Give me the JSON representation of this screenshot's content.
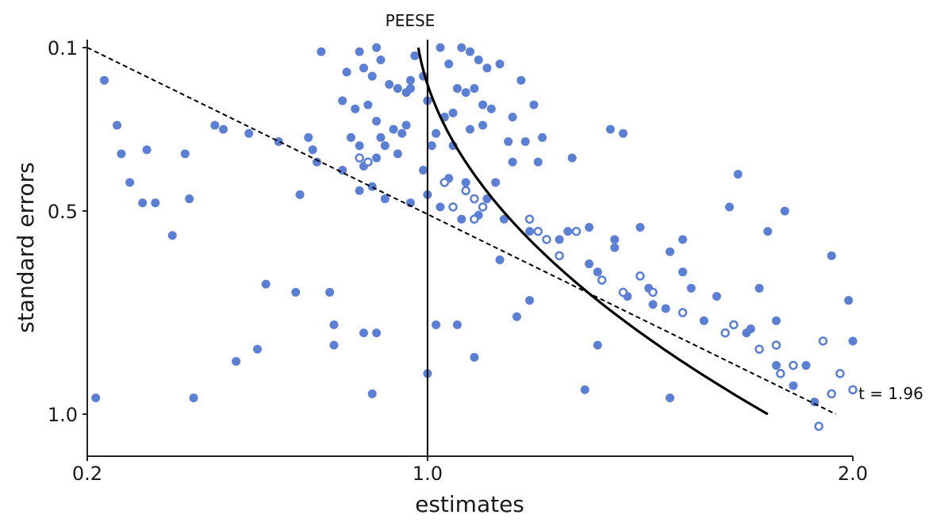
{
  "chart_data": {
    "type": "scatter",
    "title": "",
    "xlabel": "estimates",
    "ylabel": "standard errors",
    "xlim": [
      0.2,
      2.0
    ],
    "ylim": [
      0.0,
      1.1
    ],
    "y_inverted": true,
    "x_ticks": [
      {
        "value": 0.2,
        "label": "0.2"
      },
      {
        "value": 1.0,
        "label": "1.0"
      },
      {
        "value": 2.0,
        "label": "2.0"
      }
    ],
    "y_ticks": [
      {
        "value": 0.1,
        "label": "0.1"
      },
      {
        "value": 0.5,
        "label": "0.5"
      },
      {
        "value": 1.0,
        "label": "1.0"
      }
    ],
    "grid": false,
    "colors": {
      "points": "#5b7fd4",
      "lines": "#000000"
    },
    "annotations": {
      "peese_label": "PEESE",
      "t_label": "t = 1.96"
    },
    "reference_line": {
      "x": 1.0
    },
    "peese_curve": {
      "intercept": 0.97,
      "coef": 0.83,
      "se_from": 0.1,
      "se_to": 1.0
    },
    "threshold_line": {
      "x1": 0.2,
      "y1": 0.1,
      "x2": 1.96,
      "y2": 1.0
    },
    "series": [
      {
        "marker": "filled",
        "points": [
          [
            0.75,
            0.11
          ],
          [
            0.84,
            0.11
          ],
          [
            0.88,
            0.1
          ],
          [
            0.97,
            0.12
          ],
          [
            1.03,
            0.1
          ],
          [
            1.08,
            0.1
          ],
          [
            1.1,
            0.11
          ],
          [
            1.12,
            0.13
          ],
          [
            0.81,
            0.16
          ],
          [
            0.85,
            0.15
          ],
          [
            0.87,
            0.17
          ],
          [
            0.89,
            0.13
          ],
          [
            0.91,
            0.19
          ],
          [
            0.93,
            0.2
          ],
          [
            0.96,
            0.18
          ],
          [
            0.99,
            0.17
          ],
          [
            1.05,
            0.14
          ],
          [
            1.07,
            0.2
          ],
          [
            1.09,
            0.21
          ],
          [
            1.11,
            0.2
          ],
          [
            1.14,
            0.15
          ],
          [
            1.17,
            0.14
          ],
          [
            1.22,
            0.18
          ],
          [
            0.83,
            0.25
          ],
          [
            0.86,
            0.24
          ],
          [
            0.88,
            0.28
          ],
          [
            0.92,
            0.3
          ],
          [
            0.96,
            0.2
          ],
          [
            1.0,
            0.23
          ],
          [
            1.04,
            0.27
          ],
          [
            1.06,
            0.26
          ],
          [
            1.13,
            0.24
          ],
          [
            1.15,
            0.25
          ],
          [
            1.2,
            0.27
          ],
          [
            1.25,
            0.24
          ],
          [
            0.8,
            0.23
          ],
          [
            0.82,
            0.32
          ],
          [
            0.84,
            0.34
          ],
          [
            0.89,
            0.32
          ],
          [
            0.94,
            0.31
          ],
          [
            0.85,
            0.39
          ],
          [
            0.88,
            0.37
          ],
          [
            0.93,
            0.36
          ],
          [
            1.02,
            0.31
          ],
          [
            1.06,
            0.34
          ],
          [
            1.1,
            0.3
          ],
          [
            1.13,
            0.29
          ],
          [
            1.19,
            0.33
          ],
          [
            1.23,
            0.33
          ],
          [
            1.27,
            0.32
          ],
          [
            0.8,
            0.4
          ],
          [
            0.84,
            0.45
          ],
          [
            0.87,
            0.44
          ],
          [
            0.9,
            0.47
          ],
          [
            0.96,
            0.48
          ],
          [
            1.0,
            0.46
          ],
          [
            1.05,
            0.42
          ],
          [
            1.09,
            0.43
          ],
          [
            1.14,
            0.47
          ],
          [
            1.16,
            0.43
          ],
          [
            1.2,
            0.38
          ],
          [
            1.26,
            0.38
          ],
          [
            1.34,
            0.37
          ],
          [
            0.84,
            0.37
          ],
          [
            0.9,
            0.34
          ],
          [
            0.95,
            0.29
          ],
          [
            1.01,
            0.34
          ],
          [
            0.95,
            0.21
          ],
          [
            0.99,
            0.4
          ],
          [
            1.03,
            0.49
          ],
          [
            1.08,
            0.52
          ],
          [
            1.12,
            0.51
          ],
          [
            1.18,
            0.52
          ],
          [
            1.24,
            0.55
          ],
          [
            1.17,
            0.62
          ],
          [
            1.31,
            0.57
          ],
          [
            1.38,
            0.54
          ],
          [
            1.43,
            0.3
          ],
          [
            1.44,
            0.59
          ],
          [
            1.46,
            0.31
          ],
          [
            1.53,
            0.73
          ],
          [
            1.57,
            0.6
          ],
          [
            1.6,
            0.65
          ],
          [
            1.62,
            0.69
          ],
          [
            1.68,
            0.71
          ],
          [
            1.72,
            0.78
          ],
          [
            1.76,
            0.79
          ],
          [
            1.82,
            0.88
          ],
          [
            1.86,
            0.93
          ],
          [
            1.89,
            0.88
          ],
          [
            1.91,
            0.97
          ],
          [
            1.99,
            0.72
          ],
          [
            2.0,
            0.82
          ],
          [
            0.24,
            0.18
          ],
          [
            0.3,
            0.43
          ],
          [
            0.36,
            0.48
          ],
          [
            0.5,
            0.29
          ],
          [
            0.52,
            0.3
          ],
          [
            0.58,
            0.31
          ],
          [
            0.65,
            0.33
          ],
          [
            0.72,
            0.32
          ],
          [
            0.73,
            0.35
          ],
          [
            0.74,
            0.38
          ],
          [
            0.7,
            0.46
          ],
          [
            0.62,
            0.68
          ],
          [
            0.78,
            0.78
          ],
          [
            0.85,
            0.8
          ],
          [
            0.88,
            0.8
          ],
          [
            1.02,
            0.78
          ],
          [
            1.07,
            0.78
          ],
          [
            1.21,
            0.76
          ],
          [
            1.33,
            0.55
          ],
          [
            1.38,
            0.63
          ],
          [
            1.4,
            0.65
          ],
          [
            1.47,
            0.71
          ],
          [
            1.56,
            0.74
          ],
          [
            1.5,
            0.54
          ],
          [
            1.52,
            0.69
          ],
          [
            1.71,
            0.49
          ],
          [
            1.73,
            0.41
          ],
          [
            1.8,
            0.55
          ],
          [
            1.84,
            0.5
          ],
          [
            1.95,
            0.61
          ],
          [
            0.27,
            0.29
          ],
          [
            0.28,
            0.36
          ],
          [
            0.34,
            0.35
          ],
          [
            0.43,
            0.36
          ],
          [
            0.44,
            0.47
          ],
          [
            0.33,
            0.48
          ],
          [
            0.4,
            0.56
          ],
          [
            0.22,
            0.96
          ],
          [
            0.45,
            0.96
          ],
          [
            0.55,
            0.87
          ],
          [
            0.6,
            0.84
          ],
          [
            0.69,
            0.7
          ],
          [
            0.77,
            0.7
          ],
          [
            0.87,
            0.95
          ],
          [
            1.0,
            0.9
          ],
          [
            1.11,
            0.86
          ],
          [
            1.24,
            0.72
          ],
          [
            1.4,
            0.83
          ],
          [
            1.37,
            0.94
          ],
          [
            1.57,
            0.96
          ],
          [
            1.44,
            0.57
          ],
          [
            1.6,
            0.57
          ],
          [
            1.65,
            0.77
          ],
          [
            1.75,
            0.8
          ],
          [
            1.78,
            0.69
          ],
          [
            1.82,
            0.77
          ],
          [
            0.78,
            0.83
          ]
        ]
      },
      {
        "marker": "hollow",
        "points": [
          [
            0.84,
            0.37
          ],
          [
            0.86,
            0.38
          ],
          [
            1.04,
            0.43
          ],
          [
            1.06,
            0.49
          ],
          [
            1.09,
            0.45
          ],
          [
            1.11,
            0.47
          ],
          [
            1.11,
            0.52
          ],
          [
            1.13,
            0.49
          ],
          [
            1.24,
            0.52
          ],
          [
            1.26,
            0.55
          ],
          [
            1.28,
            0.57
          ],
          [
            1.31,
            0.61
          ],
          [
            1.35,
            0.55
          ],
          [
            1.41,
            0.67
          ],
          [
            1.46,
            0.7
          ],
          [
            1.5,
            0.66
          ],
          [
            1.53,
            0.7
          ],
          [
            1.6,
            0.75
          ],
          [
            1.7,
            0.8
          ],
          [
            1.72,
            0.78
          ],
          [
            1.78,
            0.84
          ],
          [
            1.82,
            0.83
          ],
          [
            1.83,
            0.9
          ],
          [
            1.86,
            0.88
          ],
          [
            1.93,
            0.82
          ],
          [
            1.95,
            0.95
          ],
          [
            1.97,
            0.9
          ],
          [
            2.0,
            0.94
          ],
          [
            1.92,
            1.03
          ]
        ]
      }
    ]
  }
}
